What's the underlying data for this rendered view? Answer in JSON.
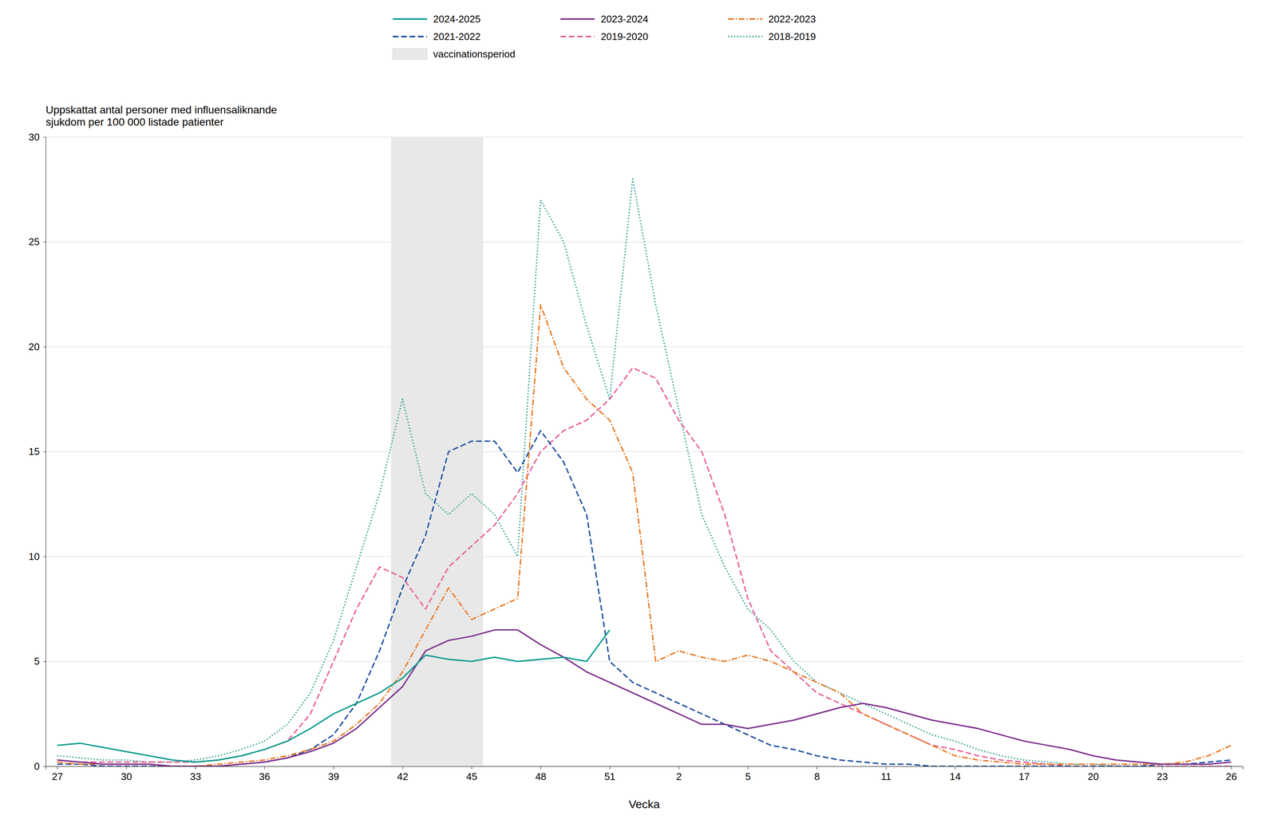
{
  "chart_data": {
    "type": "line",
    "title": "Uppskattat antal personer med influensaliknande\nsjukdom per 100 000 listade patienter",
    "x_label": "Vecka",
    "categories": [
      "27",
      null,
      null,
      "30",
      null,
      null,
      "33",
      null,
      null,
      "36",
      null,
      null,
      "39",
      null,
      null,
      "42",
      null,
      null,
      "45",
      null,
      null,
      "48",
      null,
      null,
      "51",
      null,
      null,
      "2",
      null,
      null,
      "5",
      null,
      null,
      "8",
      null,
      null,
      "11",
      null,
      null,
      "14",
      null,
      null,
      "17",
      null,
      null,
      "20",
      null,
      null,
      "23",
      null,
      null,
      "26"
    ],
    "ylim": [
      0,
      30
    ],
    "yticks": [
      0,
      5,
      10,
      15,
      20,
      25,
      30
    ],
    "grid": true,
    "legend": "top",
    "annotations": [
      {
        "type": "band",
        "text": "vaccinationsperiod",
        "from": "42",
        "to": "45",
        "color": "#E8E8E8"
      }
    ],
    "series": [
      {
        "name": "2018-2019",
        "color": "#2E9E8F",
        "line_style": "dotted",
        "values": [
          0.5,
          0.4,
          0.3,
          0.3,
          0.2,
          0.2,
          0.3,
          0.5,
          0.8,
          1.2,
          2.0,
          3.5,
          6.0,
          9.5,
          13.0,
          17.5,
          13.0,
          12.0,
          13.0,
          12.0,
          10.0,
          27.0,
          25.0,
          21.0,
          17.5,
          28.0,
          22.0,
          17.0,
          12.0,
          9.5,
          7.5,
          6.5,
          5.0,
          4.0,
          3.5,
          3.0,
          2.5,
          2.0,
          1.5,
          1.2,
          0.8,
          0.5,
          0.3,
          0.2,
          0.1,
          0.1,
          0.0,
          0.0,
          0.0,
          0.0,
          0.0,
          0.0
        ]
      },
      {
        "name": "2019-2020",
        "color": "#E8609A",
        "line_style": "dashed",
        "values": [
          0.3,
          0.2,
          0.2,
          0.2,
          0.2,
          0.2,
          0.2,
          0.3,
          0.5,
          0.8,
          1.2,
          2.5,
          5.0,
          7.5,
          9.5,
          9.0,
          7.5,
          9.5,
          10.5,
          11.5,
          13.0,
          15.0,
          16.0,
          16.5,
          17.5,
          19.0,
          18.5,
          16.5,
          15.0,
          12.0,
          8.0,
          5.5,
          4.5,
          3.5,
          3.0,
          2.5,
          2.0,
          1.5,
          1.0,
          0.8,
          0.5,
          0.3,
          0.2,
          0.1,
          0.0,
          0.0,
          0.0,
          0.0,
          0.0,
          0.0,
          0.0,
          0.0
        ]
      },
      {
        "name": "2021-2022",
        "color": "#1F4E9E",
        "line_style": "dashed",
        "values": [
          0.1,
          0.1,
          0.0,
          0.0,
          0.0,
          0.0,
          0.0,
          0.0,
          0.1,
          0.2,
          0.4,
          0.8,
          1.5,
          3.0,
          5.5,
          8.5,
          11.0,
          15.0,
          15.5,
          15.5,
          14.0,
          16.0,
          14.5,
          12.0,
          5.0,
          4.0,
          3.5,
          3.0,
          2.5,
          2.0,
          1.5,
          1.0,
          0.8,
          0.5,
          0.3,
          0.2,
          0.1,
          0.1,
          0.0,
          0.0,
          0.0,
          0.0,
          0.0,
          0.0,
          0.0,
          0.0,
          0.0,
          0.0,
          0.1,
          0.1,
          0.2,
          0.3
        ]
      },
      {
        "name": "2022-2023",
        "color": "#E87722",
        "line_style": "dashdot",
        "values": [
          0.2,
          0.1,
          0.1,
          0.1,
          0.1,
          0.0,
          0.0,
          0.1,
          0.2,
          0.3,
          0.5,
          0.8,
          1.2,
          2.0,
          3.0,
          4.5,
          6.5,
          8.5,
          7.0,
          7.5,
          8.0,
          22.0,
          19.0,
          17.5,
          16.5,
          14.0,
          5.0,
          5.5,
          5.2,
          5.0,
          5.3,
          5.0,
          4.5,
          4.0,
          3.5,
          2.5,
          2.0,
          1.5,
          1.0,
          0.5,
          0.3,
          0.2,
          0.1,
          0.1,
          0.1,
          0.1,
          0.1,
          0.1,
          0.1,
          0.2,
          0.5,
          1.0
        ]
      },
      {
        "name": "2023-2024",
        "color": "#7B2D8B",
        "line_style": "solid",
        "values": [
          0.3,
          0.2,
          0.1,
          0.1,
          0.1,
          0.0,
          0.0,
          0.0,
          0.1,
          0.2,
          0.4,
          0.7,
          1.1,
          1.8,
          2.8,
          3.8,
          5.5,
          6.0,
          6.2,
          6.5,
          6.5,
          5.8,
          5.2,
          4.5,
          4.0,
          3.5,
          3.0,
          2.5,
          2.0,
          2.0,
          1.8,
          2.0,
          2.2,
          2.5,
          2.8,
          3.0,
          2.8,
          2.5,
          2.2,
          2.0,
          1.8,
          1.5,
          1.2,
          1.0,
          0.8,
          0.5,
          0.3,
          0.2,
          0.1,
          0.1,
          0.1,
          0.2
        ]
      },
      {
        "name": "2024-2025",
        "color": "#009B8D",
        "line_style": "solid",
        "values": [
          1.0,
          1.1,
          0.9,
          0.7,
          0.5,
          0.3,
          0.2,
          0.3,
          0.5,
          0.8,
          1.2,
          1.8,
          2.5,
          3.0,
          3.5,
          4.2,
          5.3,
          5.1,
          5.0,
          5.2,
          5.0,
          5.1,
          5.2,
          5.0,
          6.5,
          null,
          null,
          null,
          null,
          null,
          null,
          null,
          null,
          null,
          null,
          null,
          null,
          null,
          null,
          null,
          null,
          null,
          null,
          null,
          null,
          null,
          null,
          null,
          null,
          null,
          null,
          null
        ]
      }
    ]
  }
}
